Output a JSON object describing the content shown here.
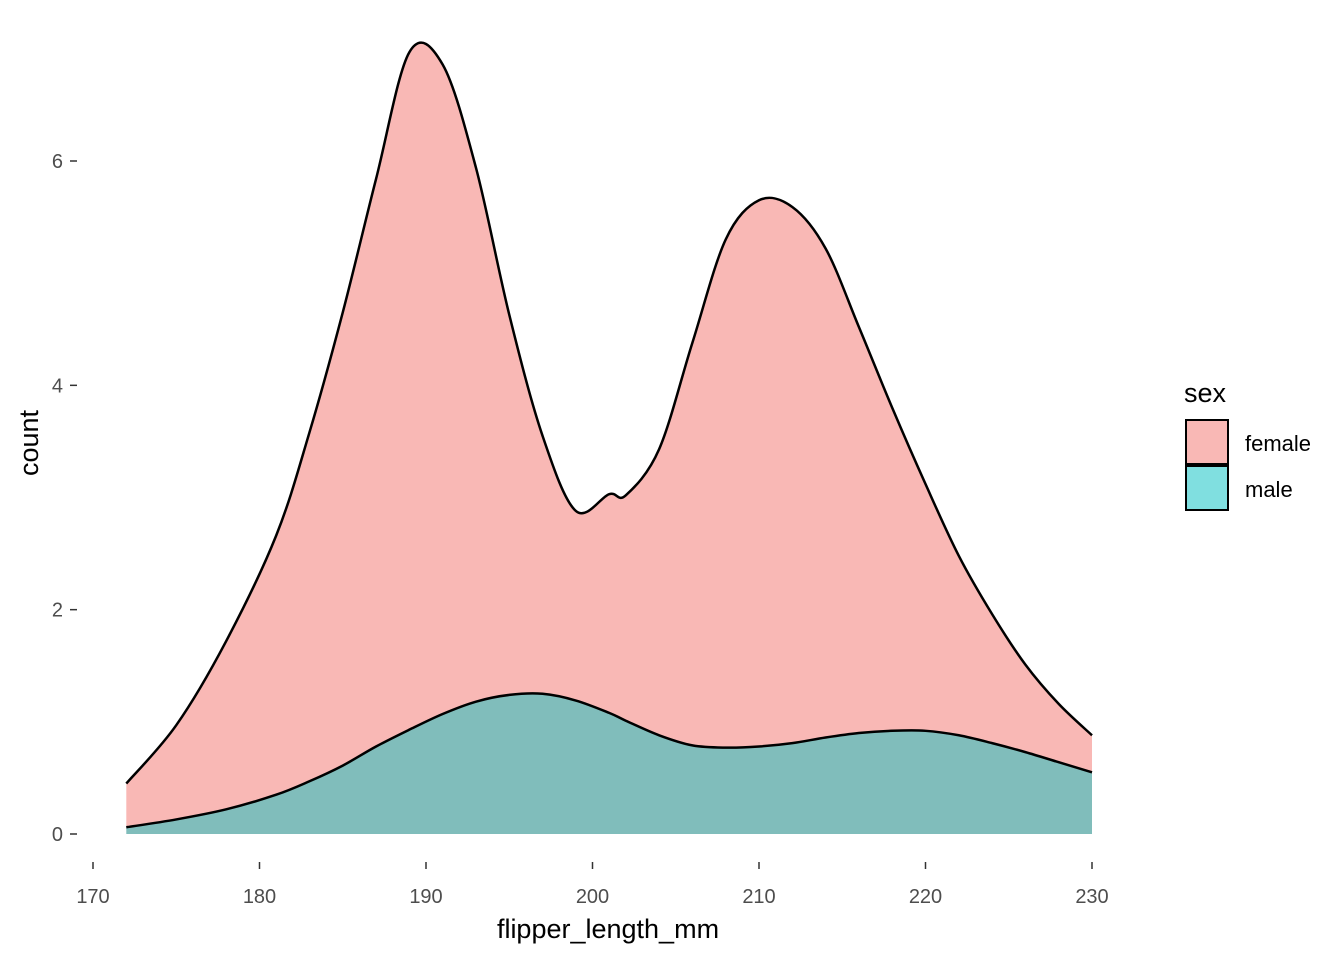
{
  "chart_data": {
    "type": "area",
    "subtype": "stacked-density",
    "xlabel": "flipper_length_mm",
    "ylabel": "count",
    "xlim": [
      170,
      230
    ],
    "ylim": [
      0,
      7
    ],
    "x_ticks": [
      170,
      180,
      190,
      200,
      210,
      220,
      230
    ],
    "y_ticks": [
      0,
      2,
      4,
      6
    ],
    "grid": false,
    "legend": {
      "title": "sex",
      "position": "right"
    },
    "x": [
      172,
      175,
      178,
      181,
      183,
      185,
      187,
      189,
      191,
      193,
      195,
      197,
      199,
      201,
      202,
      204,
      206,
      208,
      210,
      212,
      214,
      216,
      218,
      220,
      222,
      224,
      226,
      228,
      230
    ],
    "series": [
      {
        "name": "male",
        "color": "#80bdbb",
        "values": [
          0.06,
          0.13,
          0.22,
          0.35,
          0.47,
          0.61,
          0.78,
          0.93,
          1.07,
          1.18,
          1.24,
          1.25,
          1.19,
          1.08,
          1.01,
          0.88,
          0.79,
          0.77,
          0.78,
          0.81,
          0.86,
          0.9,
          0.92,
          0.92,
          0.88,
          0.81,
          0.73,
          0.64,
          0.55
        ]
      },
      {
        "name": "female",
        "color": "#f9b8b5",
        "values": [
          0.39,
          0.84,
          1.5,
          2.31,
          3.11,
          4.04,
          5.06,
          6.04,
          5.79,
          4.76,
          3.39,
          2.3,
          1.69,
          1.95,
          2.01,
          2.55,
          3.59,
          4.53,
          4.87,
          4.78,
          4.36,
          3.62,
          2.88,
          2.2,
          1.6,
          1.15,
          0.78,
          0.52,
          0.33
        ]
      }
    ]
  }
}
